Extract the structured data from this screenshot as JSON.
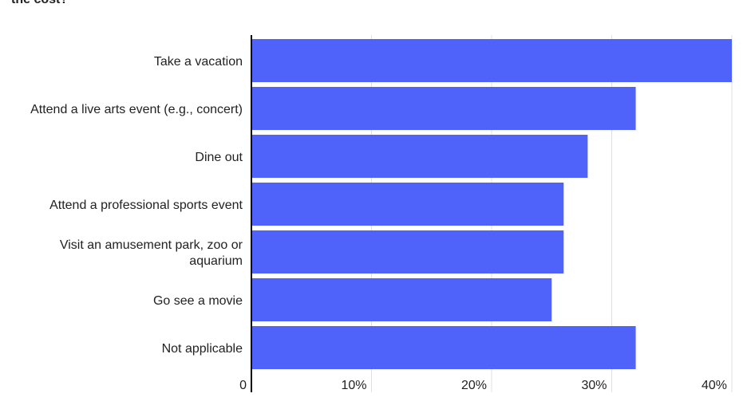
{
  "title_fragment": "the cost?",
  "colors": {
    "bar": "#4f63fb",
    "grid": "#e0e0e0",
    "axis": "#000000",
    "text": "#222222"
  },
  "chart_data": {
    "type": "bar",
    "orientation": "horizontal",
    "title": "the cost?",
    "xlabel": "",
    "ylabel": "",
    "xlim": [
      0,
      40
    ],
    "x_ticks": [
      0,
      10,
      20,
      30,
      40
    ],
    "x_tick_labels": [
      "0",
      "10%",
      "20%",
      "30%",
      "40%"
    ],
    "grid": true,
    "categories": [
      [
        "Take a vacation"
      ],
      [
        "Attend a live arts event (e.g., concert)"
      ],
      [
        "Dine out"
      ],
      [
        "Attend a professional sports event"
      ],
      [
        "Visit an amusement park, zoo or",
        "aquarium"
      ],
      [
        "Go see a movie"
      ],
      [
        "Not applicable"
      ]
    ],
    "values": [
      40,
      32,
      28,
      26,
      26,
      25,
      32
    ],
    "legend": "none"
  }
}
